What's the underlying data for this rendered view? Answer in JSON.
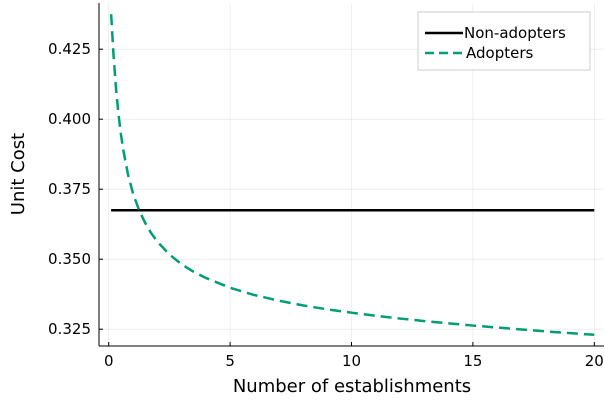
{
  "chart_data": {
    "type": "line",
    "title": "",
    "xlabel": "Number of establishments",
    "ylabel": "Unit Cost",
    "xlim": [
      -0.4,
      20.4
    ],
    "ylim": [
      0.319,
      0.4415
    ],
    "xticks": [
      0,
      5,
      10,
      15,
      20
    ],
    "yticks": [
      0.325,
      0.35,
      0.375,
      0.4,
      0.425
    ],
    "ytick_labels": [
      "0.325",
      "0.350",
      "0.375",
      "0.400",
      "0.425"
    ],
    "grid": true,
    "legend_position": "top-right",
    "series": [
      {
        "name": "Non-adopters",
        "color": "#000000",
        "style": "solid",
        "x": [
          0.1,
          20
        ],
        "y": [
          0.3675,
          0.3675
        ]
      },
      {
        "name": "Adopters",
        "color": "#009e73",
        "style": "dashed",
        "x": [
          0.1,
          0.2,
          0.3,
          0.4,
          0.5,
          0.6,
          0.8,
          1.0,
          1.25,
          1.5,
          1.75,
          2.0,
          2.5,
          3.0,
          3.5,
          4.0,
          5.0,
          6.0,
          7.0,
          8.0,
          9.0,
          10.0,
          11.0,
          12.0,
          13.0,
          14.0,
          15.0,
          16.0,
          17.0,
          18.0,
          19.0,
          20.0
        ],
        "y": [
          0.4375,
          0.4226,
          0.411,
          0.402,
          0.3948,
          0.389,
          0.38,
          0.3735,
          0.3675,
          0.363,
          0.3593,
          0.3563,
          0.3517,
          0.3482,
          0.3455,
          0.3433,
          0.3398,
          0.3372,
          0.3352,
          0.3335,
          0.3321,
          0.3309,
          0.3298,
          0.3288,
          0.3279,
          0.3271,
          0.3263,
          0.3256,
          0.3249,
          0.3242,
          0.3236,
          0.323
        ]
      }
    ]
  }
}
